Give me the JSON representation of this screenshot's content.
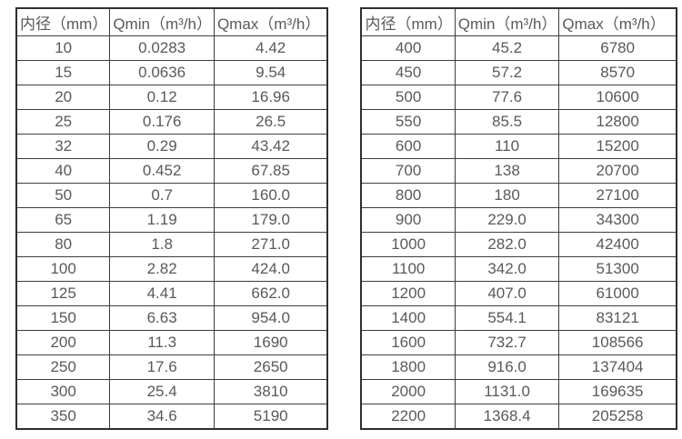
{
  "colors": {
    "table_border": "#3d3d3d",
    "outer_border": "#2e2e2e",
    "text": "#595959",
    "background": "#ffffff"
  },
  "tables": [
    {
      "name": "flow-rate-table-small-diameters",
      "headers": [
        "内径（mm）",
        "Qmin（m³/h）",
        "Qmax（m³/h）"
      ],
      "rows": [
        [
          "10",
          "0.0283",
          "4.42"
        ],
        [
          "15",
          "0.0636",
          "9.54"
        ],
        [
          "20",
          "0.12",
          "16.96"
        ],
        [
          "25",
          "0.176",
          "26.5"
        ],
        [
          "32",
          "0.29",
          "43.42"
        ],
        [
          "40",
          "0.452",
          "67.85"
        ],
        [
          "50",
          "0.7",
          "160.0"
        ],
        [
          "65",
          "1.19",
          "179.0"
        ],
        [
          "80",
          "1.8",
          "271.0"
        ],
        [
          "100",
          "2.82",
          "424.0"
        ],
        [
          "125",
          "4.41",
          "662.0"
        ],
        [
          "150",
          "6.63",
          "954.0"
        ],
        [
          "200",
          "11.3",
          "1690"
        ],
        [
          "250",
          "17.6",
          "2650"
        ],
        [
          "300",
          "25.4",
          "3810"
        ],
        [
          "350",
          "34.6",
          "5190"
        ]
      ]
    },
    {
      "name": "flow-rate-table-large-diameters",
      "headers": [
        "内径（mm）",
        "Qmin（m³/h）",
        "Qmax（m³/h）"
      ],
      "rows": [
        [
          "400",
          "45.2",
          "6780"
        ],
        [
          "450",
          "57.2",
          "8570"
        ],
        [
          "500",
          "77.6",
          "10600"
        ],
        [
          "550",
          "85.5",
          "12800"
        ],
        [
          "600",
          "110",
          "15200"
        ],
        [
          "700",
          "138",
          "20700"
        ],
        [
          "800",
          "180",
          "27100"
        ],
        [
          "900",
          "229.0",
          "34300"
        ],
        [
          "1000",
          "282.0",
          "42400"
        ],
        [
          "1100",
          "342.0",
          "51300"
        ],
        [
          "1200",
          "407.0",
          "61000"
        ],
        [
          "1400",
          "554.1",
          "83121"
        ],
        [
          "1600",
          "732.7",
          "108566"
        ],
        [
          "1800",
          "916.0",
          "137404"
        ],
        [
          "2000",
          "1131.0",
          "169635"
        ],
        [
          "2200",
          "1368.4",
          "205258"
        ]
      ]
    }
  ]
}
